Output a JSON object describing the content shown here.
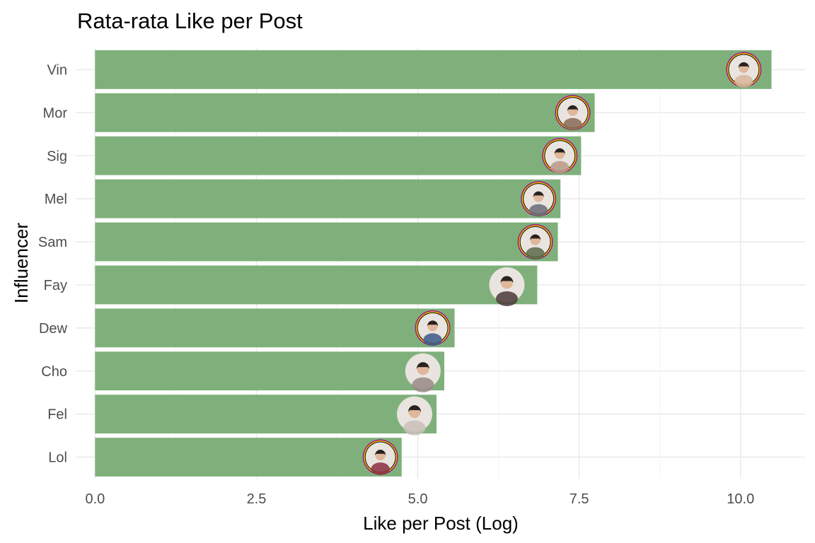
{
  "chart_data": {
    "type": "bar",
    "orientation": "horizontal",
    "title": "Rata-rata Like per Post",
    "xlabel": "Like per Post (Log)",
    "ylabel": "Influencer",
    "xlim": [
      -0.3,
      11.0
    ],
    "xticks": [
      0.0,
      2.5,
      5.0,
      7.5,
      10.0
    ],
    "xtick_labels": [
      "0.0",
      "2.5",
      "5.0",
      "7.5",
      "10.0"
    ],
    "categories": [
      "Vin",
      "Mor",
      "Sig",
      "Mel",
      "Sam",
      "Fay",
      "Dew",
      "Cho",
      "Fel",
      "Lol"
    ],
    "values": [
      10.48,
      7.74,
      7.53,
      7.21,
      7.17,
      6.85,
      5.57,
      5.41,
      5.29,
      4.75
    ],
    "marker_values": [
      10.05,
      7.4,
      7.2,
      6.87,
      6.82,
      6.38,
      5.23,
      5.08,
      4.95,
      4.42
    ],
    "marker_ring": [
      true,
      true,
      true,
      true,
      true,
      false,
      true,
      false,
      false,
      true
    ],
    "grid": true,
    "legend": "none",
    "colors": {
      "bar": "#7fb07b",
      "ring_outer": "#9c1a8a",
      "ring_inner": "#f0b800",
      "avatar_skins": [
        "#d9b59a",
        "#8a6a56",
        "#b89a8a",
        "#6a6a78",
        "#5a6a4a",
        "#4a3a3a",
        "#3a5a8a",
        "#9a8a86",
        "#c8c0b8",
        "#8a3040"
      ]
    }
  }
}
